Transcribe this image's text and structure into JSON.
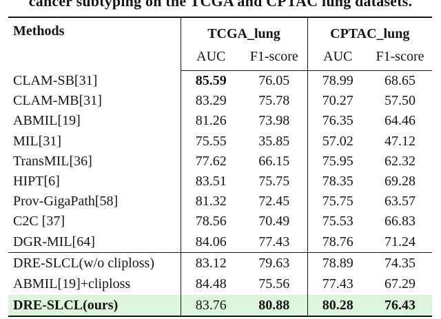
{
  "caption": "cancer subtyping on the TCGA and CPTAC lung datasets.",
  "table": {
    "methods_header": "Methods",
    "group_headers": [
      "TCGA_lung",
      "CPTAC_lung"
    ],
    "sub_headers": [
      "AUC",
      "F1-score",
      "AUC",
      "F1-score"
    ],
    "highlight_color": "#ddf5dd",
    "sections": [
      {
        "rows": [
          {
            "method": "CLAM-SB[31]",
            "method_bold": false,
            "highlight": false,
            "values": [
              "85.59",
              "76.05",
              "78.99",
              "68.65"
            ],
            "bold": [
              true,
              false,
              false,
              false
            ]
          },
          {
            "method": "CLAM-MB[31]",
            "method_bold": false,
            "highlight": false,
            "values": [
              "83.29",
              "75.78",
              "70.27",
              "57.50"
            ],
            "bold": [
              false,
              false,
              false,
              false
            ]
          },
          {
            "method": "ABMIL[19]",
            "method_bold": false,
            "highlight": false,
            "values": [
              "81.26",
              "73.98",
              "76.35",
              "64.46"
            ],
            "bold": [
              false,
              false,
              false,
              false
            ]
          },
          {
            "method": "MIL[31]",
            "method_bold": false,
            "highlight": false,
            "values": [
              "75.55",
              "35.85",
              "57.02",
              "47.12"
            ],
            "bold": [
              false,
              false,
              false,
              false
            ]
          },
          {
            "method": "TransMIL[36]",
            "method_bold": false,
            "highlight": false,
            "values": [
              "77.62",
              "66.15",
              "75.95",
              "62.32"
            ],
            "bold": [
              false,
              false,
              false,
              false
            ]
          },
          {
            "method": "HIPT[6]",
            "method_bold": false,
            "highlight": false,
            "values": [
              "83.51",
              "75.75",
              "78.35",
              "69.28"
            ],
            "bold": [
              false,
              false,
              false,
              false
            ]
          },
          {
            "method": "Prov-GigaPath[58]",
            "method_bold": false,
            "highlight": false,
            "values": [
              "81.32",
              "72.45",
              "75.75",
              "63.57"
            ],
            "bold": [
              false,
              false,
              false,
              false
            ]
          },
          {
            "method": "C2C [37]",
            "method_bold": false,
            "highlight": false,
            "values": [
              "78.56",
              "70.49",
              "75.53",
              "66.83"
            ],
            "bold": [
              false,
              false,
              false,
              false
            ]
          },
          {
            "method": "DGR-MIL[64]",
            "method_bold": false,
            "highlight": false,
            "values": [
              "84.06",
              "77.43",
              "78.76",
              "71.24"
            ],
            "bold": [
              false,
              false,
              false,
              false
            ]
          }
        ]
      },
      {
        "rows": [
          {
            "method": "DRE-SLCL(w/o cliploss)",
            "method_bold": false,
            "highlight": false,
            "values": [
              "83.12",
              "79.63",
              "78.89",
              "74.35"
            ],
            "bold": [
              false,
              false,
              false,
              false
            ]
          },
          {
            "method": "ABMIL[19]+cliploss",
            "method_bold": false,
            "highlight": false,
            "values": [
              "84.48",
              "75.56",
              "77.43",
              "67.29"
            ],
            "bold": [
              false,
              false,
              false,
              false
            ]
          },
          {
            "method": "DRE-SLCL(ours)",
            "method_bold": true,
            "highlight": true,
            "values": [
              "83.76",
              "80.88",
              "80.28",
              "76.43"
            ],
            "bold": [
              false,
              true,
              true,
              true
            ]
          }
        ]
      }
    ]
  }
}
